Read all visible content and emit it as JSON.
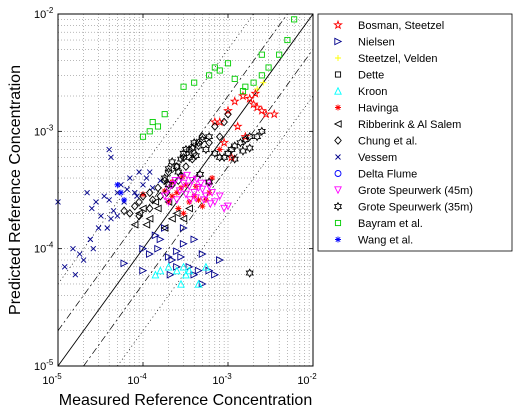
{
  "chart_data": {
    "type": "scatter",
    "title": "",
    "xlabel": "Measured Reference Concentration",
    "ylabel": "Predicted Reference Concentration",
    "x_scale": "log",
    "y_scale": "log",
    "xlim": [
      1e-05,
      0.01
    ],
    "ylim": [
      1e-05,
      0.01
    ],
    "grid": "dotted major and minor",
    "legend_position": "outside right, top",
    "x_ticks": [
      {
        "value": 1e-05,
        "base": "10",
        "exp": "-5"
      },
      {
        "value": 0.0001,
        "base": "10",
        "exp": "-4"
      },
      {
        "value": 0.001,
        "base": "10",
        "exp": "-3"
      },
      {
        "value": 0.01,
        "base": "10",
        "exp": "-2"
      }
    ],
    "y_ticks": [
      {
        "value": 1e-05,
        "base": "10",
        "exp": "-5"
      },
      {
        "value": 0.0001,
        "base": "10",
        "exp": "-4"
      },
      {
        "value": 0.001,
        "base": "10",
        "exp": "-3"
      },
      {
        "value": 0.01,
        "base": "10",
        "exp": "-2"
      }
    ],
    "reference_lines": [
      {
        "style": "solid",
        "factor": 1
      },
      {
        "style": "dashdot",
        "factor": 2
      },
      {
        "style": "dashdot",
        "factor": 0.5
      },
      {
        "style": "dotted",
        "factor": 5
      },
      {
        "style": "dotted",
        "factor": 0.2
      }
    ],
    "series": [
      {
        "name": "Bosman, Steetzel",
        "marker": "star",
        "color": "#ff0000",
        "points": [
          [
            0.0008,
            0.0012
          ],
          [
            0.001,
            0.0015
          ],
          [
            0.0012,
            0.0018
          ],
          [
            0.0015,
            0.002
          ],
          [
            0.0018,
            0.0019
          ],
          [
            0.002,
            0.0017
          ],
          [
            0.0022,
            0.0016
          ],
          [
            0.0025,
            0.0015
          ],
          [
            0.0028,
            0.0014
          ],
          [
            0.0035,
            0.0014
          ],
          [
            0.0009,
            0.0008
          ],
          [
            0.0013,
            0.0011
          ],
          [
            0.0016,
            0.0009
          ],
          [
            0.0007,
            0.0012
          ],
          [
            0.0011,
            0.0006
          ],
          [
            0.0021,
            0.0021
          ]
        ]
      },
      {
        "name": "Nielsen",
        "marker": "triangle-right",
        "color": "#00008b",
        "points": [
          [
            6e-05,
            7.5e-05
          ],
          [
            0.0001,
            0.0001
          ],
          [
            0.00012,
            9e-05
          ],
          [
            0.00015,
            0.0001
          ],
          [
            0.00016,
            0.00012
          ],
          [
            0.0002,
            8.5e-05
          ],
          [
            0.00022,
            8e-05
          ],
          [
            0.00025,
            9.5e-05
          ],
          [
            0.0003,
            0.00011
          ],
          [
            0.0004,
            0.00012
          ],
          [
            0.0005,
            9e-05
          ],
          [
            0.00035,
            7e-05
          ],
          [
            0.0006,
            6.5e-05
          ],
          [
            0.00025,
            7e-05
          ],
          [
            0.0004,
            6e-05
          ],
          [
            0.0007,
            6e-05
          ],
          [
            0.0008,
            8e-05
          ],
          [
            0.0003,
            0.00015
          ],
          [
            0.00014,
            0.00013
          ],
          [
            0.00018,
            0.00015
          ],
          [
            0.00045,
            6.5e-05
          ],
          [
            0.0005,
            5e-05
          ],
          [
            0.0001,
            6.5e-05
          ],
          [
            0.00021,
            6e-05
          ],
          [
            0.00028,
            8.5e-05
          ]
        ]
      },
      {
        "name": "Steetzel, Velden",
        "marker": "plus",
        "color": "#ffff00",
        "points": [
          [
            0.0026,
            0.0026
          ],
          [
            0.0022,
            0.0023
          ]
        ]
      },
      {
        "name": "Dette",
        "marker": "square",
        "color": "#000000",
        "points": []
      },
      {
        "name": "Kroon",
        "marker": "triangle-up",
        "color": "#00ffff",
        "points": [
          [
            0.00014,
            6e-05
          ],
          [
            0.00016,
            6.5e-05
          ],
          [
            0.0002,
            7e-05
          ],
          [
            0.00025,
            6.5e-05
          ],
          [
            0.0003,
            7e-05
          ],
          [
            0.00035,
            6.5e-05
          ],
          [
            0.00045,
            5e-05
          ],
          [
            0.00055,
            7e-05
          ],
          [
            0.00028,
            5e-05
          ],
          [
            0.00032,
            6e-05
          ]
        ]
      },
      {
        "name": "Havinga",
        "marker": "asterisk",
        "color": "#ff0000",
        "points": [
          [
            0.0002,
            0.00025
          ],
          [
            0.00022,
            0.00028
          ],
          [
            0.00025,
            0.0003
          ],
          [
            0.00028,
            0.00033
          ],
          [
            0.0003,
            0.0002
          ],
          [
            0.00035,
            0.00025
          ],
          [
            0.0004,
            0.00028
          ],
          [
            0.00032,
            0.00035
          ],
          [
            0.00026,
            0.00022
          ],
          [
            0.00045,
            0.00026
          ],
          [
            0.0005,
            0.00023
          ],
          [
            0.00018,
            0.00031
          ],
          [
            0.00022,
            0.00037
          ],
          [
            0.00029,
            0.00041
          ],
          [
            0.00042,
            0.00034
          ],
          [
            0.00055,
            0.00026
          ],
          [
            0.0006,
            0.0003
          ],
          [
            0.0001,
            0.00029
          ],
          [
            0.0008,
            0.0007
          ],
          [
            0.00065,
            0.0004
          ]
        ]
      },
      {
        "name": "Ribberink & Al Salem",
        "marker": "triangle-left",
        "color": "#000000",
        "points": [
          [
            8e-05,
            0.00016
          ],
          [
            0.0001,
            0.00022
          ],
          [
            0.00012,
            0.00018
          ],
          [
            0.00015,
            0.00022
          ],
          [
            0.0002,
            0.00025
          ],
          [
            0.00025,
            0.0002
          ],
          [
            0.0003,
            0.00018
          ],
          [
            0.00018,
            0.00015
          ],
          [
            9e-05,
            0.0002
          ],
          [
            0.00014,
            0.00025
          ],
          [
            0.00022,
            0.00018
          ],
          [
            0.00035,
            0.00022
          ],
          [
            0.00011,
            0.00016
          ]
        ]
      },
      {
        "name": "Chung et al.",
        "marker": "diamond",
        "color": "#000000",
        "points": [
          [
            6e-05,
            0.00021
          ],
          [
            7e-05,
            0.0002
          ],
          [
            8e-05,
            0.00023
          ],
          [
            9e-05,
            0.00019
          ],
          [
            0.0001,
            0.00028
          ],
          [
            0.00012,
            0.0003
          ],
          [
            0.00013,
            0.00026
          ],
          [
            0.00015,
            0.00033
          ],
          [
            0.00016,
            0.00028
          ],
          [
            0.00018,
            0.00038
          ],
          [
            0.0002,
            0.00045
          ],
          [
            0.00022,
            0.00035
          ],
          [
            0.00025,
            0.0005
          ],
          [
            0.00028,
            0.00042
          ],
          [
            0.0003,
            0.0006
          ],
          [
            0.00032,
            0.0005
          ],
          [
            0.00035,
            0.0007
          ],
          [
            0.0004,
            0.00065
          ],
          [
            0.00045,
            0.0008
          ],
          [
            0.0005,
            0.0009
          ],
          [
            0.0006,
            0.0008
          ],
          [
            0.0007,
            0.0011
          ],
          [
            0.0008,
            0.0009
          ],
          [
            0.0009,
            0.0012
          ],
          [
            0.001,
            0.0014
          ],
          [
            0.00012,
            0.00022
          ],
          [
            9e-05,
            0.00025
          ],
          [
            0.00019,
            0.0003
          ],
          [
            0.00026,
            0.00038
          ],
          [
            0.00038,
            0.00058
          ]
        ]
      },
      {
        "name": "Vessem",
        "marker": "x",
        "color": "#00008b",
        "points": [
          [
            1e-05,
            0.00025
          ],
          [
            1.2e-05,
            7e-05
          ],
          [
            1.5e-05,
            0.0001
          ],
          [
            1.8e-05,
            9e-05
          ],
          [
            2e-05,
            8e-05
          ],
          [
            2.2e-05,
            0.0003
          ],
          [
            2.5e-05,
            0.00022
          ],
          [
            2.8e-05,
            0.00025
          ],
          [
            3e-05,
            0.00015
          ],
          [
            3.2e-05,
            0.00019
          ],
          [
            3.5e-05,
            0.00028
          ],
          [
            4e-05,
            0.00026
          ],
          [
            4.5e-05,
            0.00021
          ],
          [
            5e-05,
            0.0003
          ],
          [
            5.5e-05,
            0.00035
          ],
          [
            6e-05,
            0.00025
          ],
          [
            6.5e-05,
            0.00032
          ],
          [
            7e-05,
            0.0004
          ],
          [
            8e-05,
            0.0003
          ],
          [
            9e-05,
            0.00045
          ],
          [
            0.0001,
            0.00035
          ],
          [
            0.00011,
            0.0004
          ],
          [
            0.00013,
            0.00033
          ],
          [
            3.8e-05,
            0.00015
          ],
          [
            4.2e-05,
            0.00018
          ],
          [
            2.4e-05,
            0.00012
          ],
          [
            8.5e-05,
            0.00028
          ],
          [
            0.00012,
            0.00045
          ],
          [
            4e-05,
            0.0007
          ],
          [
            4.2e-05,
            0.0006
          ],
          [
            5e-05,
            0.00019
          ],
          [
            0.00016,
            0.00038
          ],
          [
            2.6e-05,
            0.0001
          ],
          [
            1.6e-05,
            6e-05
          ]
        ]
      },
      {
        "name": "Delta Flume",
        "marker": "circle",
        "color": "#0000ff",
        "points": []
      },
      {
        "name": "Grote Speurwerk (45m)",
        "marker": "triangle-down",
        "color": "#ff00ff",
        "points": [
          [
            0.00018,
            0.00028
          ],
          [
            0.0002,
            0.00032
          ],
          [
            0.00022,
            0.00035
          ],
          [
            0.00024,
            0.00038
          ],
          [
            0.00025,
            0.00026
          ],
          [
            0.00027,
            0.00031
          ],
          [
            0.0003,
            0.00036
          ],
          [
            0.00032,
            0.00029
          ],
          [
            0.00035,
            0.00034
          ],
          [
            0.00038,
            0.00038
          ],
          [
            0.0004,
            0.0003
          ],
          [
            0.00042,
            0.00027
          ],
          [
            0.00045,
            0.00033
          ],
          [
            0.0005,
            0.00032
          ],
          [
            0.00055,
            0.00028
          ],
          [
            0.0006,
            0.00034
          ],
          [
            0.00065,
            0.0003
          ],
          [
            0.0007,
            0.00025
          ],
          [
            0.0008,
            0.00028
          ],
          [
            0.0009,
            0.00022
          ],
          [
            0.001,
            0.00023
          ],
          [
            0.00028,
            0.0004
          ],
          [
            0.00033,
            0.00042
          ],
          [
            0.00036,
            0.00026
          ],
          [
            0.00048,
            0.00036
          ],
          [
            0.00052,
            0.00026
          ],
          [
            0.00058,
            0.00036
          ],
          [
            0.00062,
            0.00024
          ],
          [
            0.0002,
            0.00025
          ],
          [
            0.00043,
            0.00039
          ]
        ]
      },
      {
        "name": "Grote Speurwerk (35m)",
        "marker": "hexagram",
        "color": "#000000",
        "points": [
          [
            0.00018,
            0.0004
          ],
          [
            0.0002,
            0.00048
          ],
          [
            0.00022,
            0.00055
          ],
          [
            0.00025,
            0.0005
          ],
          [
            0.00028,
            0.00058
          ],
          [
            0.0003,
            0.00065
          ],
          [
            0.00032,
            0.0007
          ],
          [
            0.00035,
            0.0006
          ],
          [
            0.00038,
            0.00072
          ],
          [
            0.0004,
            0.0008
          ],
          [
            0.00045,
            0.00075
          ],
          [
            0.0005,
            0.00085
          ],
          [
            0.00055,
            0.0007
          ],
          [
            0.0006,
            0.0009
          ],
          [
            0.0007,
            0.00065
          ],
          [
            0.0008,
            0.0006
          ],
          [
            0.0009,
            0.0006
          ],
          [
            0.001,
            0.00065
          ],
          [
            0.0011,
            0.0007
          ],
          [
            0.0012,
            0.00075
          ],
          [
            0.0014,
            0.0008
          ],
          [
            0.0016,
            0.00085
          ],
          [
            0.0018,
            0.0009
          ],
          [
            0.0002,
            0.00035
          ],
          [
            0.00026,
            0.00045
          ],
          [
            0.00042,
            0.00062
          ],
          [
            0.0012,
            0.00058
          ],
          [
            0.0015,
            0.00068
          ],
          [
            0.0018,
            0.00072
          ],
          [
            0.0022,
            0.0009
          ],
          [
            0.0025,
            0.001
          ],
          [
            0.0018,
            6.2e-05
          ],
          [
            0.0006,
            0.00037
          ],
          [
            0.00047,
            0.00043
          ]
        ]
      },
      {
        "name": "Bayram et al.",
        "marker": "square",
        "color": "#00cc00",
        "points": [
          [
            0.0001,
            0.0009
          ],
          [
            0.00012,
            0.001
          ],
          [
            0.00013,
            0.0012
          ],
          [
            0.00015,
            0.0011
          ],
          [
            0.00018,
            0.0014
          ],
          [
            0.0003,
            0.0024
          ],
          [
            0.0004,
            0.0026
          ],
          [
            0.0006,
            0.003
          ],
          [
            0.0007,
            0.0035
          ],
          [
            0.0008,
            0.0033
          ],
          [
            0.001,
            0.0038
          ],
          [
            0.0012,
            0.0028
          ],
          [
            0.0015,
            0.0022
          ],
          [
            0.002,
            0.0026
          ],
          [
            0.0025,
            0.003
          ],
          [
            0.003,
            0.0035
          ],
          [
            0.004,
            0.0045
          ],
          [
            0.005,
            0.006
          ],
          [
            0.006,
            0.009
          ],
          [
            0.0025,
            0.0045
          ],
          [
            0.0016,
            0.0024
          ]
        ]
      },
      {
        "name": "Wang et al.",
        "marker": "asterisk",
        "color": "#0000ff",
        "points": [
          [
            5e-05,
            0.00035
          ],
          [
            6e-05,
            0.00026
          ],
          [
            5.5e-05,
            0.0003
          ]
        ]
      }
    ]
  }
}
